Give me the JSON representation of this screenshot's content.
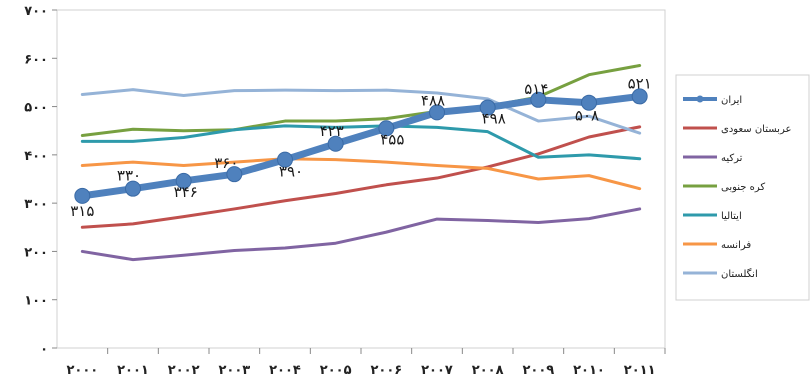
{
  "chart_data": {
    "type": "line",
    "title": "",
    "xlabel": "",
    "ylabel": "",
    "ylim": [
      0,
      700
    ],
    "yticks": [
      "۰",
      "۱۰۰",
      "۲۰۰",
      "۳۰۰",
      "۴۰۰",
      "۵۰۰",
      "۶۰۰",
      "۷۰۰"
    ],
    "categories": [
      "۲۰۰۰",
      "۲۰۰۱",
      "۲۰۰۲",
      "۲۰۰۳",
      "۲۰۰۴",
      "۲۰۰۵",
      "۲۰۰۶",
      "۲۰۰۷",
      "۲۰۰۸",
      "۲۰۰۹",
      "۲۰۱۰",
      "۲۰۱۱"
    ],
    "grid": false,
    "legend_position": "right",
    "series": [
      {
        "name": "ایران",
        "color": "#4f81bd",
        "highlight": true,
        "values": [
          315,
          330,
          346,
          360,
          390,
          423,
          455,
          488,
          498,
          514,
          508,
          521
        ],
        "labels": [
          "۳۱۵",
          "۳۳۰",
          "۳۴۶",
          "۳۶۰",
          "۳۹۰",
          "۴۲۳",
          "۴۵۵",
          "۴۸۸",
          "۴۹۸",
          "۵۱۴",
          "۵۰۸",
          "۵۲۱"
        ]
      },
      {
        "name": "عربستان سعودی",
        "color": "#c0504d",
        "values": [
          250,
          257,
          272,
          288,
          305,
          320,
          338,
          352,
          375,
          402,
          437,
          458
        ]
      },
      {
        "name": "ترکیه",
        "color": "#8064a2",
        "values": [
          200,
          183,
          192,
          202,
          207,
          217,
          240,
          267,
          264,
          260,
          268,
          288
        ]
      },
      {
        "name": "کره جنوبی",
        "color": "#77a040",
        "values": [
          440,
          453,
          450,
          452,
          470,
          470,
          475,
          490,
          500,
          520,
          566,
          585
        ]
      },
      {
        "name": "ایتالیا",
        "color": "#2e9aab",
        "values": [
          428,
          428,
          436,
          452,
          460,
          457,
          460,
          457,
          448,
          395,
          400,
          392
        ]
      },
      {
        "name": "فرانسه",
        "color": "#f79646",
        "values": [
          378,
          385,
          378,
          385,
          392,
          390,
          385,
          378,
          372,
          350,
          357,
          330
        ]
      },
      {
        "name": "انگلستان",
        "color": "#95b3d7",
        "values": [
          525,
          535,
          523,
          533,
          534,
          533,
          534,
          528,
          516,
          470,
          480,
          445
        ]
      }
    ]
  }
}
